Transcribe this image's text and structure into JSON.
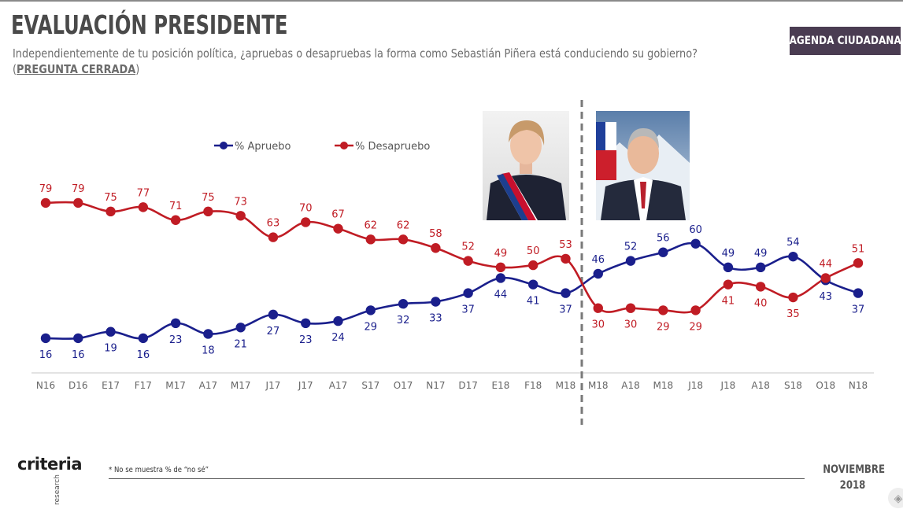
{
  "header": {
    "title": "EVALUACIÓN PRESIDENTE",
    "subtitle": "Independientemente de tu posición política, ¿apruebas o desapruebas la forma como Sebastián Piñera está conduciendo su gobierno?",
    "subtitle2_open": "(",
    "subtitle2_bold": "PREGUNTA CERRADA",
    "subtitle2_close": ")",
    "badge": "AGENDA CIUDADANA"
  },
  "footer": {
    "logo": "criteria",
    "logo_sub": "research",
    "note": "* No se muestra % de “no sé”",
    "date_line1": "NOVIEMBRE",
    "date_line2": "2018"
  },
  "colors": {
    "apruebo": "#1a1f8c",
    "desapruebo": "#c01c24",
    "grid": "#cccccc",
    "badge_bg": "#4a3c52"
  },
  "icons": {
    "corner": "compass-icon"
  },
  "chart_data": {
    "type": "line",
    "categories": [
      "N16",
      "D16",
      "E17",
      "F17",
      "M17",
      "A17",
      "M17",
      "J17",
      "J17",
      "A17",
      "S17",
      "O17",
      "N17",
      "D17",
      "E18",
      "F18",
      "M18",
      "M18",
      "A18",
      "M18",
      "J18",
      "J18",
      "A18",
      "S18",
      "O18",
      "N18"
    ],
    "series": [
      {
        "name": "% Apruebo",
        "color": "#1a1f8c",
        "values": [
          16,
          16,
          19,
          16,
          23,
          18,
          21,
          27,
          23,
          24,
          29,
          32,
          33,
          37,
          44,
          41,
          37,
          46,
          52,
          56,
          60,
          49,
          49,
          54,
          43,
          37
        ]
      },
      {
        "name": "% Desapruebo",
        "color": "#c01c24",
        "values": [
          79,
          79,
          75,
          77,
          71,
          75,
          73,
          63,
          70,
          67,
          62,
          62,
          58,
          52,
          49,
          50,
          53,
          30,
          30,
          29,
          29,
          41,
          40,
          35,
          44,
          51
        ]
      }
    ],
    "split_after_index": 16,
    "legend_position": "top-left",
    "grid": false,
    "ylim": [
      0,
      100
    ]
  }
}
